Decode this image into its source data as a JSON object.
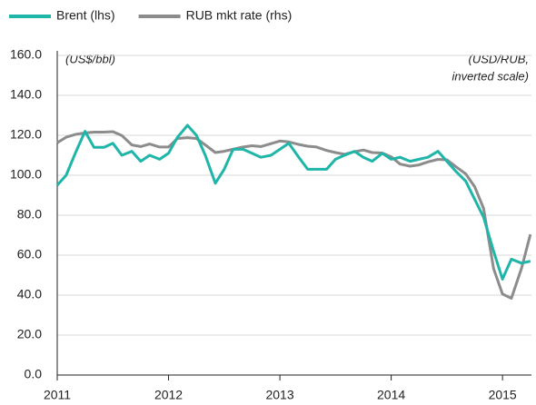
{
  "chart_data": {
    "type": "line",
    "annotations": [
      "(US$/bbl)",
      "(USD/RUB,",
      "inverted scale)"
    ],
    "x": [
      2011.0,
      2011.08,
      2011.17,
      2011.25,
      2011.33,
      2011.42,
      2011.5,
      2011.58,
      2011.67,
      2011.75,
      2011.83,
      2011.92,
      2012.0,
      2012.08,
      2012.17,
      2012.25,
      2012.33,
      2012.42,
      2012.5,
      2012.58,
      2012.67,
      2012.75,
      2012.83,
      2012.92,
      2013.0,
      2013.08,
      2013.17,
      2013.25,
      2013.33,
      2013.42,
      2013.5,
      2013.58,
      2013.67,
      2013.75,
      2013.83,
      2013.92,
      2014.0,
      2014.08,
      2014.17,
      2014.25,
      2014.33,
      2014.42,
      2014.5,
      2014.58,
      2014.67,
      2014.75,
      2014.83,
      2014.92,
      2015.0,
      2015.08,
      2015.17,
      2015.25
    ],
    "series": [
      {
        "name": "Brent (lhs)",
        "color": "#1fb5a8",
        "axis": "y",
        "values": [
          95,
          100,
          112,
          122,
          114,
          114,
          116,
          110,
          112,
          107,
          110,
          108,
          111,
          119,
          125,
          120,
          110,
          96,
          103,
          113,
          113,
          111,
          109,
          110,
          113,
          116,
          109,
          103,
          103,
          103,
          108,
          110,
          112,
          109,
          107,
          111,
          108,
          109,
          107,
          108,
          109,
          112,
          107,
          102,
          97,
          88,
          79,
          62,
          48,
          58,
          56,
          57
        ]
      },
      {
        "name": "RUB mkt rate (rhs)",
        "color": "#8c8c8c",
        "axis": "y2",
        "values": [
          30.5,
          29.2,
          28.5,
          28.2,
          28.0,
          28.0,
          27.9,
          28.8,
          31.0,
          31.4,
          30.8,
          31.5,
          31.5,
          29.5,
          29.3,
          29.5,
          31.0,
          32.8,
          32.5,
          32.0,
          31.5,
          31.2,
          31.4,
          30.7,
          30.1,
          30.3,
          30.9,
          31.3,
          31.5,
          32.3,
          32.8,
          33.2,
          32.6,
          32.2,
          32.8,
          32.9,
          33.8,
          35.5,
          36.0,
          35.7,
          35.0,
          34.4,
          34.5,
          36.1,
          37.8,
          40.8,
          45.9,
          60.0,
          66.0,
          67.0,
          60.0,
          52.0
        ]
      }
    ],
    "xlim": [
      2011,
      2015.26
    ],
    "xticks": [
      2011,
      2012,
      2013,
      2014,
      2015
    ],
    "ylim": [
      0,
      160
    ],
    "yticks": [
      {
        "value": 0,
        "label": "0.0"
      },
      {
        "value": 20,
        "label": "20.0"
      },
      {
        "value": 40,
        "label": "40.0"
      },
      {
        "value": 60,
        "label": "60.0"
      },
      {
        "value": 80,
        "label": "80.0"
      },
      {
        "value": 100,
        "label": "100.0"
      },
      {
        "value": 120,
        "label": "120.0"
      },
      {
        "value": 140,
        "label": "140.0"
      },
      {
        "value": 160,
        "label": "160.0"
      }
    ],
    "y2lim": [
      85,
      10
    ],
    "grid": true
  }
}
